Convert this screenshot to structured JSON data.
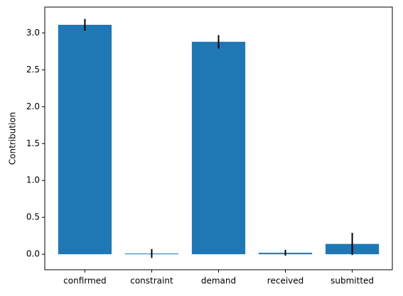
{
  "chart_data": {
    "type": "bar",
    "ylabel": "Contribution",
    "categories": [
      "confirmed",
      "constraint",
      "demand",
      "received",
      "submitted"
    ],
    "values": [
      3.11,
      0.01,
      2.88,
      0.02,
      0.14
    ],
    "errors": [
      0.08,
      0.06,
      0.09,
      0.04,
      0.15
    ],
    "color": "#1f77b4",
    "error_color": "#000000",
    "ylim": [
      -0.21,
      3.35
    ],
    "yticks": [
      {
        "value": 0,
        "label": "0.0"
      },
      0.5,
      {
        "value": 1,
        "label": "1.0"
      },
      1.5,
      {
        "value": 2,
        "label": "2.0"
      },
      2.5,
      {
        "value": 3,
        "label": "3.0"
      }
    ],
    "grid": false
  }
}
